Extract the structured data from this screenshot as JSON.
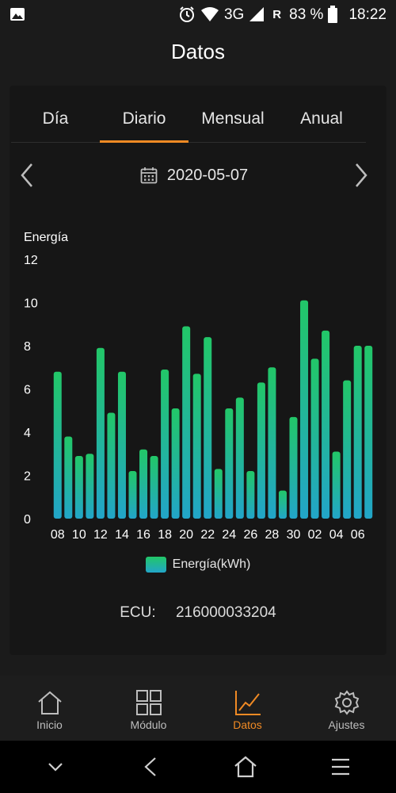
{
  "status_bar": {
    "network": "3G",
    "roaming": "R",
    "battery": "83 %",
    "time": "18:22"
  },
  "header": {
    "title": "Datos"
  },
  "tabs": [
    {
      "label": "Día",
      "active": false
    },
    {
      "label": "Diario",
      "active": true
    },
    {
      "label": "Mensual",
      "active": false
    },
    {
      "label": "Anual",
      "active": false
    }
  ],
  "date_nav": {
    "date": "2020-05-07"
  },
  "chart_data": {
    "type": "bar",
    "ylabel": "Energía",
    "ylim": [
      0,
      12
    ],
    "yticks": [
      0,
      2,
      4,
      6,
      8,
      10,
      12
    ],
    "categories": [
      "08",
      "09",
      "10",
      "11",
      "12",
      "13",
      "14",
      "15",
      "16",
      "17",
      "18",
      "19",
      "20",
      "21",
      "22",
      "23",
      "24",
      "25",
      "26",
      "27",
      "28",
      "29",
      "30",
      "01",
      "02",
      "03",
      "04",
      "05",
      "06",
      "07"
    ],
    "xtick_labels": [
      "08",
      "10",
      "12",
      "14",
      "16",
      "18",
      "20",
      "22",
      "24",
      "26",
      "28",
      "30",
      "02",
      "04",
      "06"
    ],
    "series": [
      {
        "name": "Energía(kWh)",
        "values": [
          6.8,
          3.8,
          2.9,
          3.0,
          7.9,
          4.9,
          6.8,
          2.2,
          3.2,
          2.9,
          6.9,
          5.1,
          8.9,
          6.7,
          8.4,
          2.3,
          5.1,
          5.6,
          2.2,
          6.3,
          7.0,
          1.3,
          4.7,
          10.1,
          7.4,
          8.7,
          3.1,
          6.4,
          8.0,
          8.0
        ]
      }
    ],
    "colors": {
      "top": "#22c768",
      "bottom": "#22a5c8"
    },
    "grid": false,
    "legend": "bottom-center"
  },
  "ecu": {
    "label": "ECU:",
    "value": "216000033204"
  },
  "bottom_nav": [
    {
      "label": "Inicio",
      "icon": "home-icon",
      "active": false
    },
    {
      "label": "Módulo",
      "icon": "grid-icon",
      "active": false
    },
    {
      "label": "Datos",
      "icon": "chart-icon",
      "active": true
    },
    {
      "label": "Ajustes",
      "icon": "gear-icon",
      "active": false
    }
  ],
  "colors": {
    "accent": "#f08a24",
    "background": "#1b1b1b"
  }
}
